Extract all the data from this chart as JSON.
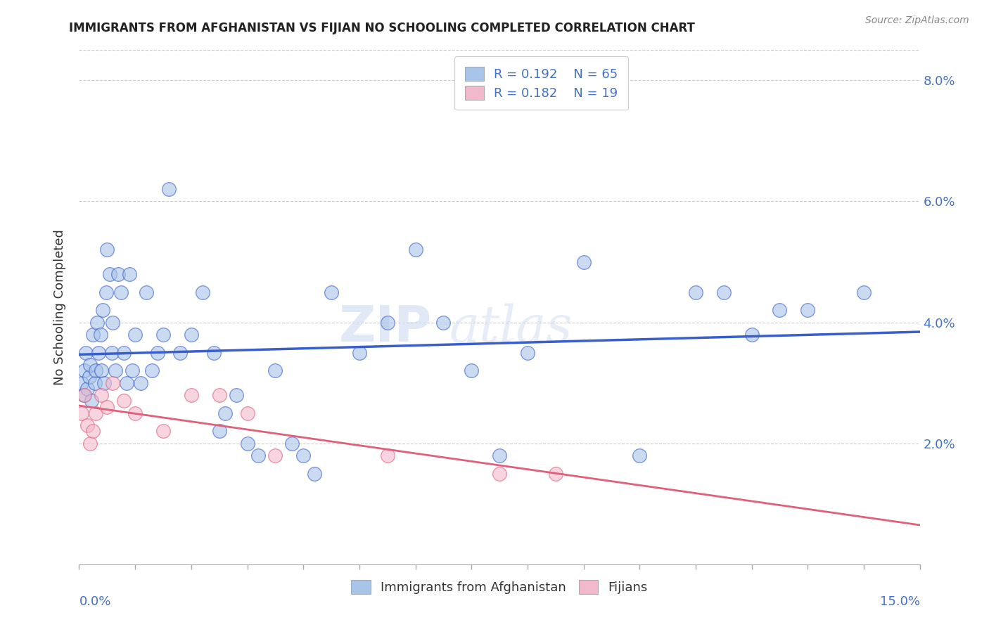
{
  "title": "IMMIGRANTS FROM AFGHANISTAN VS FIJIAN NO SCHOOLING COMPLETED CORRELATION CHART",
  "source": "Source: ZipAtlas.com",
  "ylabel": "No Schooling Completed",
  "xmin": 0.0,
  "xmax": 15.0,
  "ymin": 0.0,
  "ymax": 8.5,
  "yticks": [
    2.0,
    4.0,
    6.0,
    8.0
  ],
  "color_afghanistan": "#a8c4e8",
  "color_fijian": "#f2b8cc",
  "color_line_afghanistan": "#3a5fcd",
  "color_line_fijian": "#e0607a",
  "afghanistan_x": [
    0.05,
    0.08,
    0.1,
    0.12,
    0.15,
    0.18,
    0.2,
    0.22,
    0.25,
    0.28,
    0.3,
    0.32,
    0.35,
    0.38,
    0.4,
    0.42,
    0.45,
    0.48,
    0.5,
    0.55,
    0.58,
    0.6,
    0.65,
    0.7,
    0.75,
    0.8,
    0.85,
    0.9,
    0.95,
    1.0,
    1.1,
    1.2,
    1.3,
    1.4,
    1.5,
    1.6,
    1.8,
    2.0,
    2.2,
    2.4,
    2.5,
    2.6,
    2.8,
    3.0,
    3.2,
    3.5,
    3.8,
    4.0,
    4.2,
    4.5,
    5.0,
    5.5,
    6.0,
    6.5,
    7.0,
    7.5,
    8.0,
    9.0,
    10.0,
    11.0,
    11.5,
    12.0,
    12.5,
    13.0,
    14.0
  ],
  "afghanistan_y": [
    3.0,
    2.8,
    3.2,
    3.5,
    2.9,
    3.1,
    3.3,
    2.7,
    3.8,
    3.0,
    3.2,
    4.0,
    3.5,
    3.8,
    3.2,
    4.2,
    3.0,
    4.5,
    5.2,
    4.8,
    3.5,
    4.0,
    3.2,
    4.8,
    4.5,
    3.5,
    3.0,
    4.8,
    3.2,
    3.8,
    3.0,
    4.5,
    3.2,
    3.5,
    3.8,
    6.2,
    3.5,
    3.8,
    4.5,
    3.5,
    2.2,
    2.5,
    2.8,
    2.0,
    1.8,
    3.2,
    2.0,
    1.8,
    1.5,
    4.5,
    3.5,
    4.0,
    5.2,
    4.0,
    3.2,
    1.8,
    3.5,
    5.0,
    1.8,
    4.5,
    4.5,
    3.8,
    4.2,
    4.2,
    4.5
  ],
  "fijian_x": [
    0.05,
    0.1,
    0.15,
    0.2,
    0.25,
    0.3,
    0.4,
    0.5,
    0.6,
    0.8,
    1.0,
    1.5,
    2.0,
    2.5,
    3.0,
    3.5,
    5.5,
    7.5,
    8.5
  ],
  "fijian_y": [
    2.5,
    2.8,
    2.3,
    2.0,
    2.2,
    2.5,
    2.8,
    2.6,
    3.0,
    2.7,
    2.5,
    2.2,
    2.8,
    2.8,
    2.5,
    1.8,
    1.8,
    1.5,
    1.5
  ]
}
